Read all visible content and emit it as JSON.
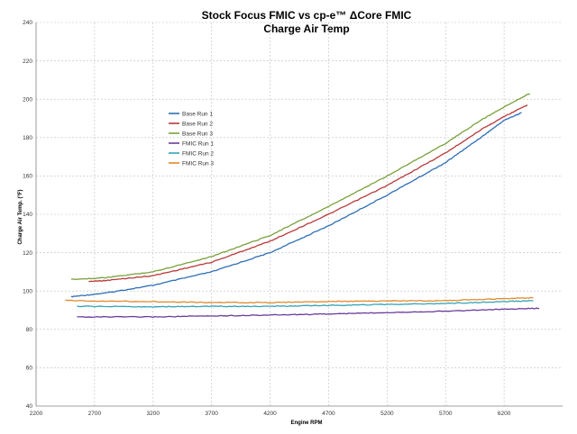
{
  "chart_data": {
    "type": "line",
    "title": "Stock Focus FMIC vs cp-e™ ΔCore FMIC",
    "subtitle": "Charge Air Temp",
    "xlabel": "Engine RPM",
    "ylabel": "Charge Air Temp. (°F)",
    "xlim": [
      2200,
      6700
    ],
    "ylim": [
      40,
      240
    ],
    "xticks": [
      2200,
      2700,
      3200,
      3700,
      4200,
      4700,
      5200,
      5700,
      6200
    ],
    "yticks": [
      40,
      60,
      80,
      100,
      120,
      140,
      160,
      180,
      200,
      220,
      240
    ],
    "xgrid": true,
    "ygrid": true,
    "legend_position": "upper-left",
    "series": [
      {
        "name": "Base Run 1",
        "color": "#2f6eb5",
        "points": [
          [
            2500,
            97
          ],
          [
            2800,
            99
          ],
          [
            3200,
            103
          ],
          [
            3700,
            110
          ],
          [
            4200,
            120
          ],
          [
            4700,
            134
          ],
          [
            5200,
            150
          ],
          [
            5700,
            167
          ],
          [
            6000,
            180
          ],
          [
            6200,
            189
          ],
          [
            6350,
            193
          ]
        ]
      },
      {
        "name": "Base Run 2",
        "color": "#b83a3a",
        "points": [
          [
            2650,
            105
          ],
          [
            2800,
            105.5
          ],
          [
            3200,
            108
          ],
          [
            3700,
            115
          ],
          [
            4200,
            126
          ],
          [
            4700,
            140
          ],
          [
            5200,
            155
          ],
          [
            5700,
            172
          ],
          [
            6000,
            184
          ],
          [
            6200,
            191
          ],
          [
            6400,
            197
          ]
        ]
      },
      {
        "name": "Base Run 3",
        "color": "#79a03c",
        "points": [
          [
            2500,
            106
          ],
          [
            2800,
            107
          ],
          [
            3200,
            110
          ],
          [
            3700,
            118
          ],
          [
            4200,
            129
          ],
          [
            4700,
            144
          ],
          [
            5200,
            160
          ],
          [
            5700,
            177
          ],
          [
            6000,
            189
          ],
          [
            6200,
            196
          ],
          [
            6420,
            203
          ]
        ]
      },
      {
        "name": "FMIC Run 1",
        "color": "#6a3d99",
        "points": [
          [
            2550,
            86.5
          ],
          [
            3200,
            86.5
          ],
          [
            3700,
            87
          ],
          [
            4200,
            87.5
          ],
          [
            4700,
            88
          ],
          [
            5200,
            88.8
          ],
          [
            5700,
            89.5
          ],
          [
            6200,
            90.5
          ],
          [
            6500,
            91
          ]
        ]
      },
      {
        "name": "FMIC Run 2",
        "color": "#35a3b5",
        "points": [
          [
            2550,
            92
          ],
          [
            3200,
            91.8
          ],
          [
            3700,
            92
          ],
          [
            4200,
            92
          ],
          [
            4700,
            92.5
          ],
          [
            5200,
            93
          ],
          [
            5700,
            93.5
          ],
          [
            6200,
            94.5
          ],
          [
            6450,
            95
          ]
        ]
      },
      {
        "name": "FMIC Run 3",
        "color": "#e08a2b",
        "points": [
          [
            2450,
            95
          ],
          [
            3200,
            94.5
          ],
          [
            3700,
            94
          ],
          [
            4200,
            94
          ],
          [
            4700,
            94.5
          ],
          [
            5200,
            94.8
          ],
          [
            5700,
            95
          ],
          [
            6200,
            96
          ],
          [
            6450,
            96.5
          ]
        ]
      }
    ]
  }
}
